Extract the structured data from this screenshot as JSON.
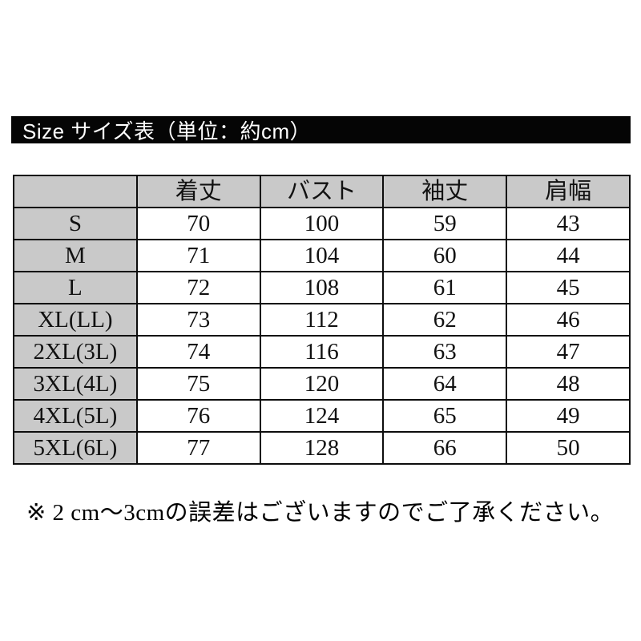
{
  "colors": {
    "title_bar_bg": "#050505",
    "title_bar_text": "#ffffff",
    "cell_gray": "#c9c9c9",
    "cell_white": "#ffffff",
    "border": "#0d0d0d"
  },
  "chart_data": {
    "type": "table",
    "title": "Size サイズ表（単位：約cm）",
    "unit": "cm",
    "columns": [
      "",
      "着丈",
      "バスト",
      "袖丈",
      "肩幅"
    ],
    "rows": [
      {
        "label": "S",
        "values": [
          70,
          100,
          59,
          43
        ]
      },
      {
        "label": "M",
        "values": [
          71,
          104,
          60,
          44
        ]
      },
      {
        "label": "L",
        "values": [
          72,
          108,
          61,
          45
        ]
      },
      {
        "label": "XL(LL)",
        "values": [
          73,
          112,
          62,
          46
        ]
      },
      {
        "label": "2XL(3L)",
        "values": [
          74,
          116,
          63,
          47
        ]
      },
      {
        "label": "3XL(4L)",
        "values": [
          75,
          120,
          64,
          48
        ]
      },
      {
        "label": "4XL(5L)",
        "values": [
          76,
          124,
          65,
          49
        ]
      },
      {
        "label": "5XL(6L)",
        "values": [
          77,
          128,
          66,
          50
        ]
      }
    ],
    "note": "※ 2 cm～3cmの誤差はございますのでご了承ください。",
    "layout": {
      "grid": "on",
      "header_row_shaded": true,
      "label_column_shaded": true
    }
  }
}
